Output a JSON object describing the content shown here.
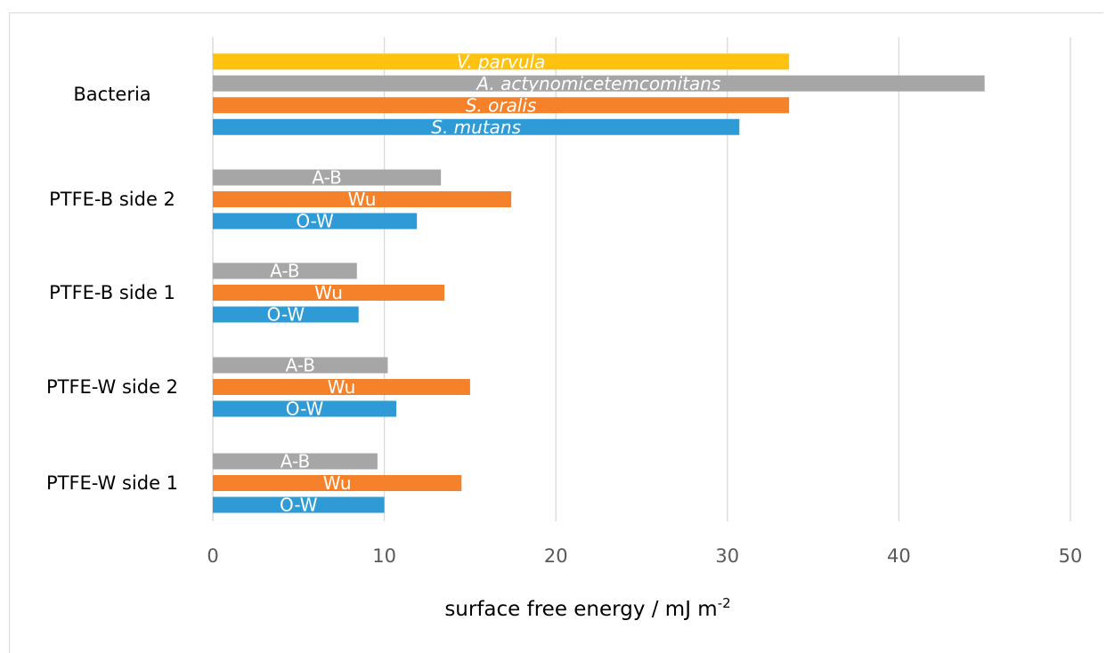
{
  "chart_data": {
    "type": "bar",
    "orientation": "horizontal",
    "xlabel": "surface free energy / mJ m",
    "xlabel_superscript": "-2",
    "xlim": [
      0,
      50
    ],
    "xticks": [
      "0",
      "10",
      "20",
      "30",
      "40",
      "50"
    ],
    "grid": "vertical",
    "colors": {
      "blue": "#2e9bd6",
      "orange": "#f5822a",
      "gray": "#a6a6a6",
      "yellow": "#ffc20e"
    },
    "groups": [
      {
        "category": "Bacteria",
        "bars": [
          {
            "label": "V. parvula",
            "value": 33.6,
            "color": "#ffc20e",
            "italic": true
          },
          {
            "label": "A. actynomicetemcomitans",
            "value": 45.0,
            "color": "#a6a6a6",
            "italic": true
          },
          {
            "label": "S. oralis",
            "value": 33.6,
            "color": "#f5822a",
            "italic": true
          },
          {
            "label": "S. mutans",
            "value": 30.7,
            "color": "#2e9bd6",
            "italic": true
          }
        ]
      },
      {
        "category": "PTFE-B side 2",
        "bars": [
          {
            "label": "A-B",
            "value": 13.3,
            "color": "#a6a6a6",
            "italic": false
          },
          {
            "label": "Wu",
            "value": 17.4,
            "color": "#f5822a",
            "italic": false
          },
          {
            "label": "O-W",
            "value": 11.9,
            "color": "#2e9bd6",
            "italic": false
          }
        ]
      },
      {
        "category": "PTFE-B side 1",
        "bars": [
          {
            "label": "A-B",
            "value": 8.4,
            "color": "#a6a6a6",
            "italic": false
          },
          {
            "label": "Wu",
            "value": 13.5,
            "color": "#f5822a",
            "italic": false
          },
          {
            "label": "O-W",
            "value": 8.5,
            "color": "#2e9bd6",
            "italic": false
          }
        ]
      },
      {
        "category": "PTFE-W side 2",
        "bars": [
          {
            "label": "A-B",
            "value": 10.2,
            "color": "#a6a6a6",
            "italic": false
          },
          {
            "label": "Wu",
            "value": 15.0,
            "color": "#f5822a",
            "italic": false
          },
          {
            "label": "O-W",
            "value": 10.7,
            "color": "#2e9bd6",
            "italic": false
          }
        ]
      },
      {
        "category": "PTFE-W side 1",
        "bars": [
          {
            "label": "A-B",
            "value": 9.6,
            "color": "#a6a6a6",
            "italic": false
          },
          {
            "label": "Wu",
            "value": 14.5,
            "color": "#f5822a",
            "italic": false
          },
          {
            "label": "O-W",
            "value": 10.0,
            "color": "#2e9bd6",
            "italic": false
          }
        ]
      }
    ]
  }
}
